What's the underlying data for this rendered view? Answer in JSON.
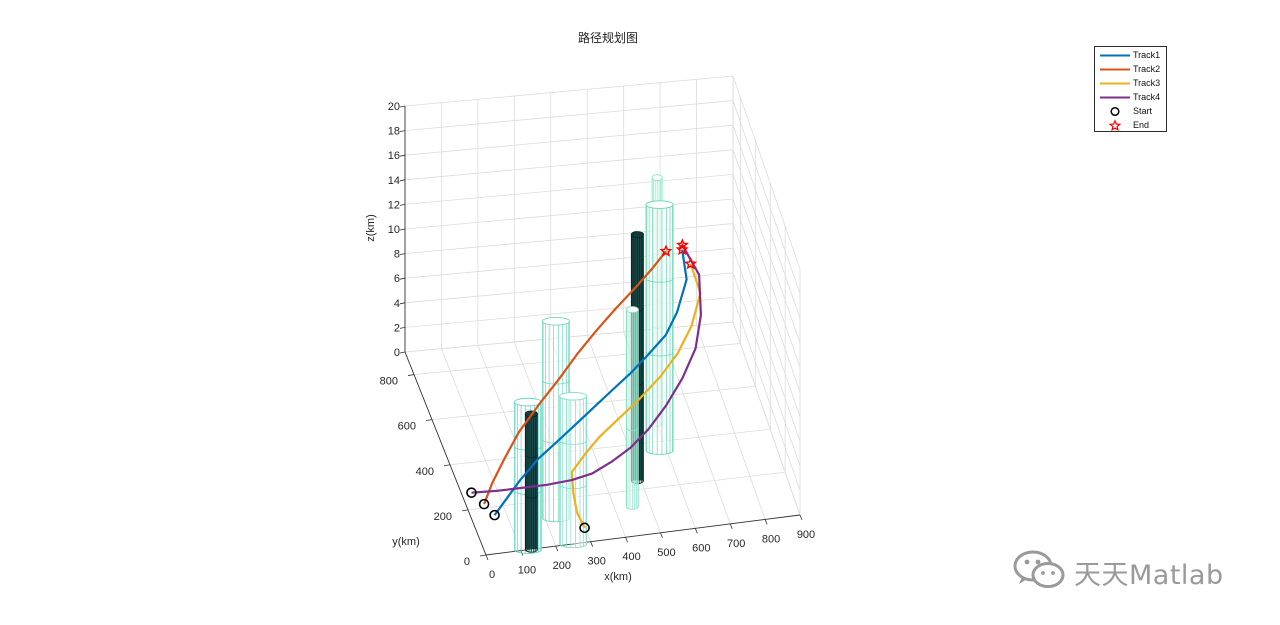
{
  "chart_data": {
    "type": "line3d",
    "title": "路径规划图",
    "xlabel": "x(km)",
    "ylabel": "y(km)",
    "zlabel": "z(km)",
    "xlim": [
      0,
      900
    ],
    "ylim": [
      0,
      900
    ],
    "zlim": [
      0,
      20
    ],
    "xticks": [
      0,
      100,
      200,
      300,
      400,
      500,
      600,
      700,
      800,
      900
    ],
    "yticks": [
      0,
      200,
      400,
      600,
      800
    ],
    "zticks": [
      0,
      2,
      4,
      6,
      8,
      10,
      12,
      14,
      16,
      18,
      20
    ],
    "grid": true,
    "legend_position": "top-right",
    "legend": [
      {
        "label": "Track1",
        "kind": "line",
        "color": "#0072BD"
      },
      {
        "label": "Track2",
        "kind": "line",
        "color": "#D95319"
      },
      {
        "label": "Track3",
        "kind": "line",
        "color": "#EDB120"
      },
      {
        "label": "Track4",
        "kind": "line",
        "color": "#7E2F8E"
      },
      {
        "label": "Start",
        "kind": "circle",
        "color": "#000000"
      },
      {
        "label": "End",
        "kind": "star",
        "color": "#FF0000"
      }
    ],
    "obstacles": [
      {
        "x": 120,
        "y": 0,
        "r": 40,
        "h": 12,
        "color": "#5fd6c8"
      },
      {
        "x": 230,
        "y": 120,
        "r": 40,
        "h": 16,
        "color": "#6fd8bb"
      },
      {
        "x": 250,
        "y": 0,
        "r": 40,
        "h": 12,
        "color": "#7fdcc8"
      },
      {
        "x": 130,
        "y": 0,
        "r": 18,
        "h": 11,
        "color": "#104040"
      },
      {
        "x": 450,
        "y": 130,
        "r": 18,
        "h": 16,
        "color": "#8fe0c8"
      },
      {
        "x": 490,
        "y": 240,
        "r": 18,
        "h": 20,
        "color": "#0d3d3a"
      },
      {
        "x": 580,
        "y": 360,
        "r": 40,
        "h": 20,
        "color": "#66d6b2"
      },
      {
        "x": 600,
        "y": 480,
        "r": 15,
        "h": 20,
        "color": "#8fe8c8"
      }
    ],
    "series": [
      {
        "name": "Track1",
        "color": "#0072BD",
        "x": [
          40,
          80,
          120,
          180,
          250,
          320,
          380,
          440,
          500,
          560,
          620,
          660,
          700,
          705
        ],
        "y": [
          60,
          75,
          90,
          120,
          160,
          210,
          260,
          310,
          360,
          410,
          460,
          500,
          560,
          640
        ],
        "z": [
          2,
          3,
          4,
          5,
          5.6,
          6,
          6.2,
          6.4,
          6.6,
          7,
          7.5,
          8.5,
          10,
          11
        ]
      },
      {
        "name": "Track2",
        "color": "#D95319",
        "x": [
          10,
          40,
          80,
          130,
          200,
          270,
          340,
          410,
          480,
          550,
          610,
          660
        ],
        "y": [
          60,
          90,
          110,
          140,
          190,
          250,
          320,
          390,
          460,
          530,
          590,
          640
        ],
        "z": [
          3,
          4,
          5.5,
          7,
          8.1,
          8.8,
          9.4,
          9.8,
          10.1,
          10.3,
          10.6,
          11
        ]
      },
      {
        "name": "Track3",
        "color": "#EDB120",
        "x": [
          285,
          270,
          270,
          280,
          330,
          380,
          440,
          510,
          580,
          640,
          690,
          730,
          720
        ],
        "y": [
          10,
          40,
          80,
          140,
          190,
          230,
          260,
          300,
          350,
          400,
          450,
          520,
          600
        ],
        "z": [
          1,
          1.8,
          2.6,
          3.2,
          3.6,
          4.1,
          4.8,
          5.5,
          6.2,
          7,
          8.2,
          9.5,
          10.5
        ]
      },
      {
        "name": "Track4",
        "color": "#7E2F8E",
        "x": [
          20,
          90,
          160,
          230,
          300,
          360,
          420,
          480,
          540,
          600,
          660,
          710,
          740,
          750,
          710
        ],
        "y": [
          240,
          235,
          230,
          225,
          222,
          230,
          250,
          280,
          320,
          370,
          430,
          490,
          560,
          630,
          660
        ],
        "z": [
          0.6,
          0.6,
          0.7,
          0.8,
          1.0,
          1.2,
          1.6,
          2.0,
          2.6,
          3.4,
          4.4,
          5.6,
          7.0,
          9.0,
          11
        ]
      }
    ]
  }
}
